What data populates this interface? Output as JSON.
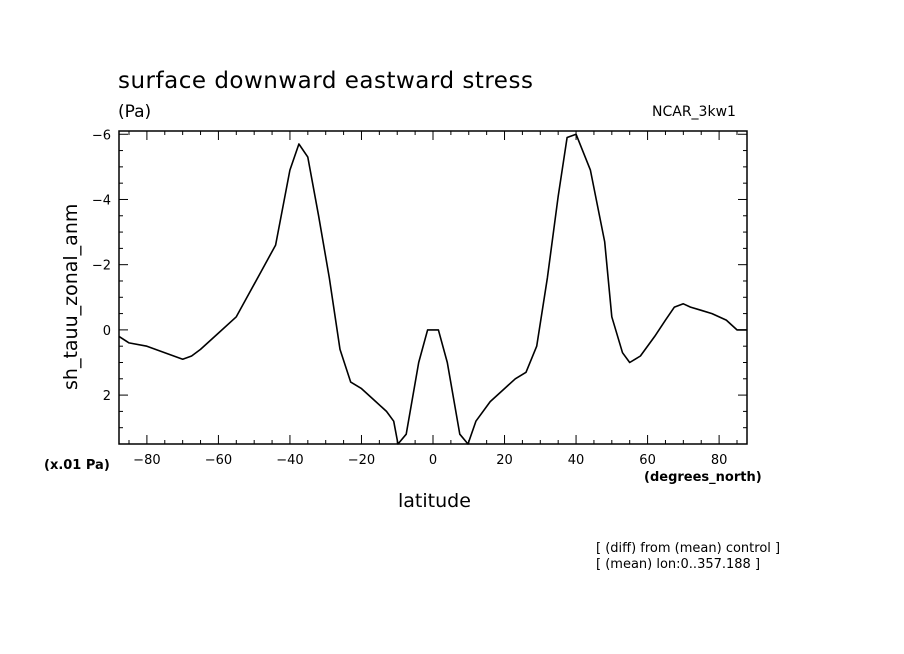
{
  "chart_data": {
    "type": "line",
    "title": "surface downward eastward stress",
    "units": "(Pa)",
    "model": "NCAR_3kw1",
    "xlabel": "latitude",
    "x_units": "(degrees_north)",
    "ylabel": "sh_tauu_zonal_anm",
    "y_scale_note": "(x.01 Pa)",
    "notes": [
      "[ (diff) from (mean) control ]",
      "[ (mean) lon:0..357.188 ]"
    ],
    "xlim": [
      -87.8,
      87.8
    ],
    "ylim": [
      3.5,
      -6.1
    ],
    "y_inverted": true,
    "xticks": [
      -80,
      -60,
      -40,
      -20,
      0,
      20,
      40,
      60,
      80
    ],
    "yticks": [
      -6,
      -4,
      -2,
      0,
      2
    ],
    "grid": false,
    "legend": "none",
    "series": [
      {
        "x": [
          -87.8,
          -85,
          -80,
          -75,
          -70,
          -67.5,
          -65,
          -60,
          -55,
          -52,
          -48,
          -44,
          -40,
          -37.5,
          -35,
          -32,
          -29,
          -26,
          -23,
          -20,
          -16,
          -13,
          -11,
          -9.8,
          -7.5,
          -4,
          -1.5,
          1.5,
          4,
          7.5,
          9.8,
          12,
          16,
          20,
          23,
          26,
          29,
          32,
          35,
          37.5,
          40,
          44,
          48,
          50,
          53,
          55,
          58,
          62,
          65,
          67.5,
          70,
          72,
          75,
          78,
          82,
          85,
          87.8
        ],
        "y": [
          0.2,
          0.4,
          0.5,
          0.7,
          0.9,
          0.8,
          0.6,
          0.1,
          -0.4,
          -1.0,
          -1.8,
          -2.6,
          -4.9,
          -5.7,
          -5.3,
          -3.5,
          -1.6,
          0.6,
          1.6,
          1.8,
          2.2,
          2.5,
          2.8,
          3.5,
          3.2,
          1.0,
          0.0,
          0.0,
          1.0,
          3.2,
          3.5,
          2.8,
          2.2,
          1.8,
          1.5,
          1.3,
          0.5,
          -1.6,
          -4.1,
          -5.9,
          -6.0,
          -4.9,
          -2.7,
          -0.4,
          0.7,
          1.0,
          0.8,
          0.2,
          -0.3,
          -0.7,
          -0.8,
          -0.7,
          -0.6,
          -0.5,
          -0.3,
          0.0,
          0.0
        ]
      }
    ]
  }
}
